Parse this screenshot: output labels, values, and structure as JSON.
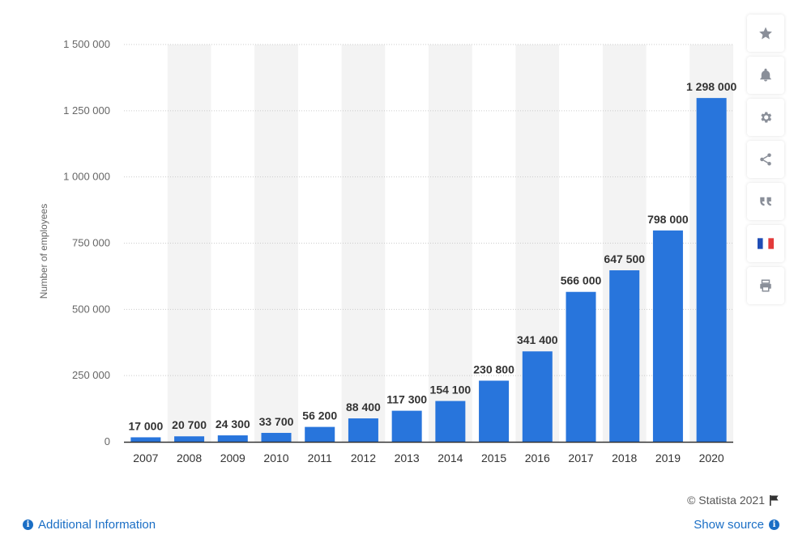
{
  "chart_data": {
    "type": "bar",
    "categories": [
      "2007",
      "2008",
      "2009",
      "2010",
      "2011",
      "2012",
      "2013",
      "2014",
      "2015",
      "2016",
      "2017",
      "2018",
      "2019",
      "2020"
    ],
    "values": [
      17000,
      20700,
      24300,
      33700,
      56200,
      88400,
      117300,
      154100,
      230800,
      341400,
      566000,
      647500,
      798000,
      1298000
    ],
    "value_labels": [
      "17 000",
      "20 700",
      "24 300",
      "33 700",
      "56 200",
      "88 400",
      "117 300",
      "154 100",
      "230 800",
      "341 400",
      "566 000",
      "647 500",
      "798 000",
      "1 298 000"
    ],
    "yticks": [
      0,
      250000,
      500000,
      750000,
      1000000,
      1250000,
      1500000
    ],
    "ytick_labels": [
      "0",
      "250 000",
      "500 000",
      "750 000",
      "1 000 000",
      "1 250 000",
      "1 500 000"
    ],
    "ylim": [
      0,
      1500000
    ],
    "title": "",
    "xlabel": "",
    "ylabel": "Number of employees",
    "bar_color": "#2875dc",
    "stripe_color": "#f3f3f3",
    "grid": true
  },
  "sidebar": {
    "buttons": [
      {
        "name": "favorite-star-icon"
      },
      {
        "name": "notification-bell-icon"
      },
      {
        "name": "settings-gear-icon"
      },
      {
        "name": "share-icon"
      },
      {
        "name": "cite-quote-icon"
      },
      {
        "name": "language-flag-icon"
      },
      {
        "name": "print-icon"
      }
    ]
  },
  "footer": {
    "credit": "© Statista 2021",
    "additional_info": "Additional Information",
    "show_source": "Show source"
  }
}
